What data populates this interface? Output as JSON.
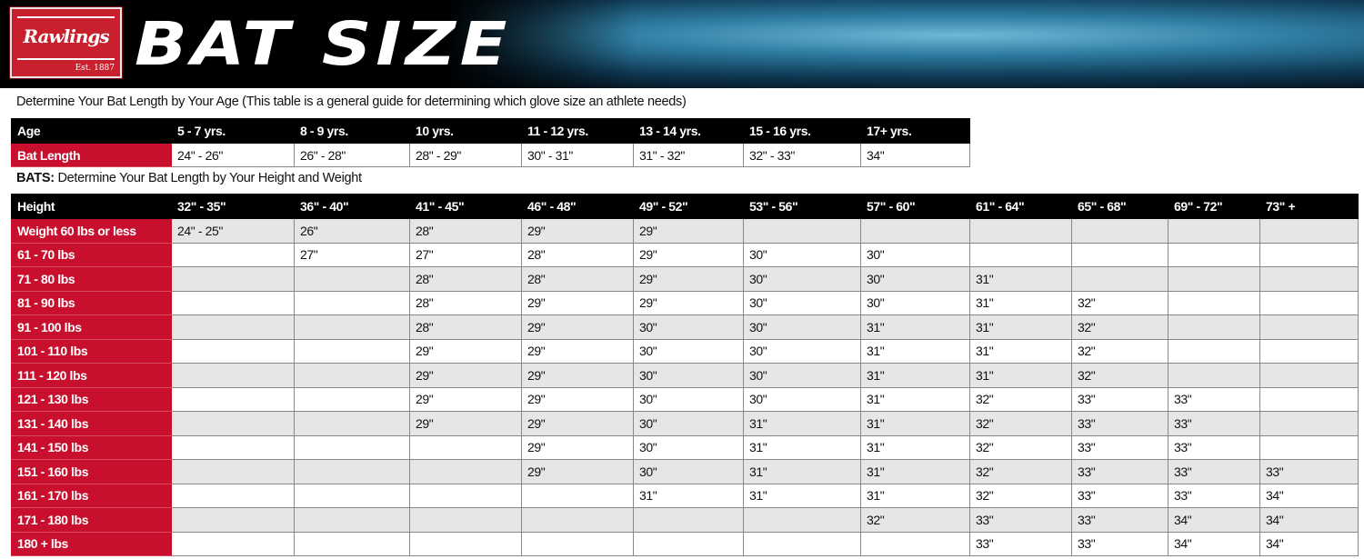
{
  "banner": {
    "brand": "Rawlings",
    "brand_est": "Est. 1887",
    "title": "BAT SIZE"
  },
  "age_section": {
    "caption": "Determine Your Bat Length by Your Age (This table is a general guide for determining which glove size an athlete needs)",
    "row_labels": [
      "Age",
      "Bat Length"
    ],
    "ages": [
      "5 - 7 yrs.",
      "8 - 9 yrs.",
      "10 yrs.",
      "11 - 12 yrs.",
      "13 - 14 yrs.",
      "15 - 16 yrs.",
      "17+ yrs."
    ],
    "lengths": [
      "24\" - 26\"",
      "26\" - 28\"",
      "28\" - 29\"",
      "30\" - 31\"",
      "31\" - 32\"",
      "32\" - 33\"",
      "34\""
    ]
  },
  "bats_section": {
    "caption_bold": "BATS:",
    "caption": " Determine Your Bat Length by Your Height and Weight",
    "corner_label": "Height",
    "heights": [
      "32\" - 35\"",
      "36\" - 40\"",
      "41\" - 45\"",
      "46\" - 48\"",
      "49\" - 52\"",
      "53\" - 56\"",
      "57\" - 60\"",
      "61\" - 64\"",
      "65\" - 68\"",
      "69\" - 72\"",
      "73\" +"
    ],
    "rows": [
      {
        "weight": "Weight 60 lbs or less",
        "cells": [
          "24\" - 25\"",
          "26\"",
          "28\"",
          "29\"",
          "29\"",
          "",
          "",
          "",
          "",
          "",
          ""
        ]
      },
      {
        "weight": "61 - 70 lbs",
        "cells": [
          "",
          "27\"",
          "27\"",
          "28\"",
          "29\"",
          "30\"",
          "30\"",
          "",
          "",
          "",
          ""
        ]
      },
      {
        "weight": "71 - 80 lbs",
        "cells": [
          "",
          "",
          "28\"",
          "28\"",
          "29\"",
          "30\"",
          "30\"",
          "31\"",
          "",
          "",
          ""
        ]
      },
      {
        "weight": "81 - 90 lbs",
        "cells": [
          "",
          "",
          "28\"",
          "29\"",
          "29\"",
          "30\"",
          "30\"",
          "31\"",
          "32\"",
          "",
          ""
        ]
      },
      {
        "weight": "91 - 100 lbs",
        "cells": [
          "",
          "",
          "28\"",
          "29\"",
          "30\"",
          "30\"",
          "31\"",
          "31\"",
          "32\"",
          "",
          ""
        ]
      },
      {
        "weight": "101 - 110 lbs",
        "cells": [
          "",
          "",
          "29\"",
          "29\"",
          "30\"",
          "30\"",
          "31\"",
          "31\"",
          "32\"",
          "",
          ""
        ]
      },
      {
        "weight": "111 - 120 lbs",
        "cells": [
          "",
          "",
          "29\"",
          "29\"",
          "30\"",
          "30\"",
          "31\"",
          "31\"",
          "32\"",
          "",
          ""
        ]
      },
      {
        "weight": "121 - 130 lbs",
        "cells": [
          "",
          "",
          "29\"",
          "29\"",
          "30\"",
          "30\"",
          "31\"",
          "32\"",
          "33\"",
          "33\"",
          ""
        ]
      },
      {
        "weight": "131 - 140 lbs",
        "cells": [
          "",
          "",
          "29\"",
          "29\"",
          "30\"",
          "31\"",
          "31\"",
          "32\"",
          "33\"",
          "33\"",
          ""
        ]
      },
      {
        "weight": "141 - 150 lbs",
        "cells": [
          "",
          "",
          "",
          "29\"",
          "30\"",
          "31\"",
          "31\"",
          "32\"",
          "33\"",
          "33\"",
          ""
        ]
      },
      {
        "weight": "151 - 160 lbs",
        "cells": [
          "",
          "",
          "",
          "29\"",
          "30\"",
          "31\"",
          "31\"",
          "32\"",
          "33\"",
          "33\"",
          "33\""
        ]
      },
      {
        "weight": "161 - 170 lbs",
        "cells": [
          "",
          "",
          "",
          "",
          "31\"",
          "31\"",
          "31\"",
          "32\"",
          "33\"",
          "33\"",
          "34\""
        ]
      },
      {
        "weight": "171 - 180 lbs",
        "cells": [
          "",
          "",
          "",
          "",
          "",
          "",
          "32\"",
          "33\"",
          "33\"",
          "34\"",
          "34\""
        ]
      },
      {
        "weight": "180 + lbs",
        "cells": [
          "",
          "",
          "",
          "",
          "",
          "",
          "",
          "33\"",
          "33\"",
          "34\"",
          "34\""
        ]
      }
    ]
  },
  "colors": {
    "brand_red": "#c8102e",
    "header_black": "#000000",
    "row_alt": "#e6e6e7"
  }
}
